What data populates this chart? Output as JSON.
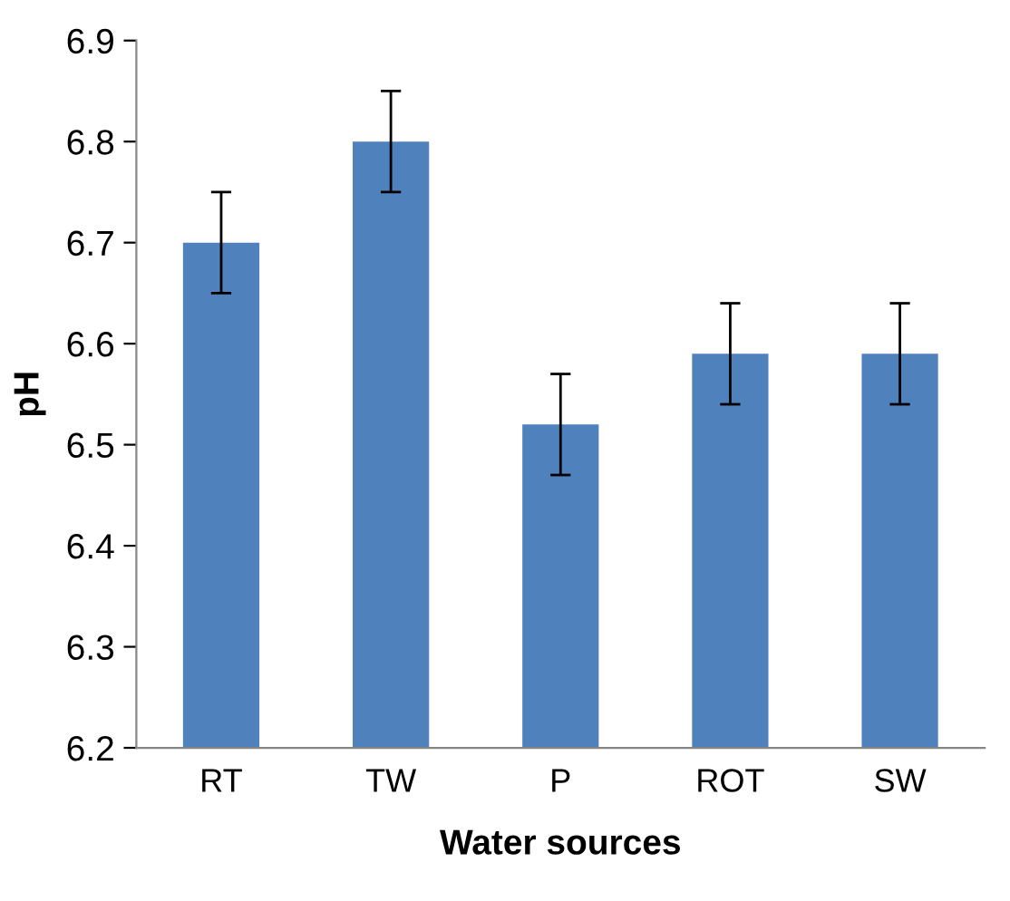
{
  "chart_data": {
    "type": "bar",
    "xlabel": "Water sources",
    "ylabel": "pH",
    "categories": [
      "RT",
      "TW",
      "P",
      "ROT",
      "SW"
    ],
    "values": [
      6.7,
      6.8,
      6.52,
      6.59,
      6.59
    ],
    "errors": [
      0.05,
      0.05,
      0.05,
      0.05,
      0.05
    ],
    "color": "#4f81bd",
    "ylim": [
      6.2,
      6.9
    ],
    "yticks": [
      6.2,
      6.3,
      6.4,
      6.5,
      6.6,
      6.7,
      6.8,
      6.9
    ],
    "grid": false,
    "legend": false
  }
}
